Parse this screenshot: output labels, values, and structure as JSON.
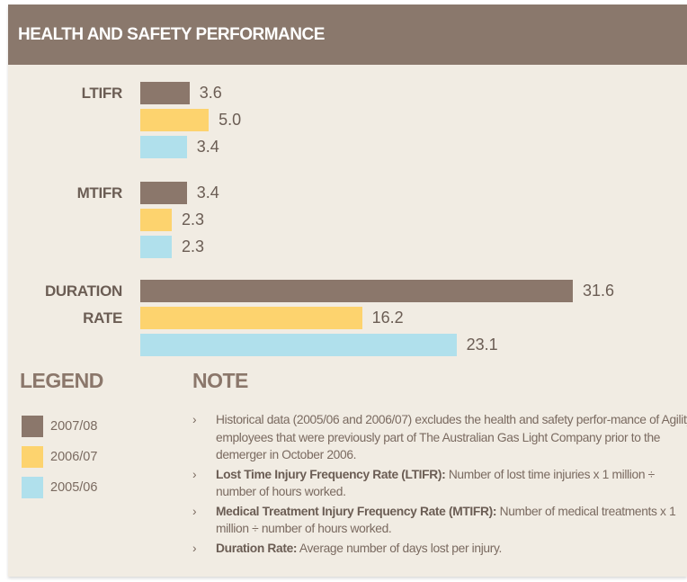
{
  "chart_data": {
    "type": "bar",
    "orientation": "horizontal",
    "title": "HEALTH AND SAFETY PERFORMANCE",
    "categories": [
      "LTIFR",
      "MTIFR",
      "DURATION RATE"
    ],
    "series": [
      {
        "name": "2007/08",
        "color": "#8b776b",
        "values": [
          3.6,
          3.4,
          31.6
        ],
        "value_labels": [
          "3.6",
          "3.4",
          "31.6"
        ]
      },
      {
        "name": "2006/07",
        "color": "#fdd36e",
        "values": [
          5.0,
          2.3,
          16.2
        ],
        "value_labels": [
          "5.0",
          "2.3",
          "16.2"
        ]
      },
      {
        "name": "2005/06",
        "color": "#b0e0ec",
        "values": [
          3.4,
          2.3,
          23.1
        ],
        "value_labels": [
          "3.4",
          "2.3",
          "23.1"
        ]
      }
    ],
    "legend_title": "LEGEND",
    "note_title": "NOTE",
    "notes": [
      {
        "text": "Historical data (2005/06 and 2006/07) excludes the health and safety perfor-mance of Agility employees that were previously part of The Australian Gas Light Company prior to the demerger in October 2006."
      },
      {
        "term": "Lost Time Injury Frequency Rate (LTIFR):",
        "text": "Number of lost time injuries x 1 million ÷ number of hours worked."
      },
      {
        "term": "Medical Treatment Injury Frequency Rate (MTIFR):",
        "text": "Number of medical treatments x 1 million ÷ number of hours worked."
      },
      {
        "term": "Duration Rate:",
        "text": "Average number of days lost per injury."
      }
    ]
  }
}
